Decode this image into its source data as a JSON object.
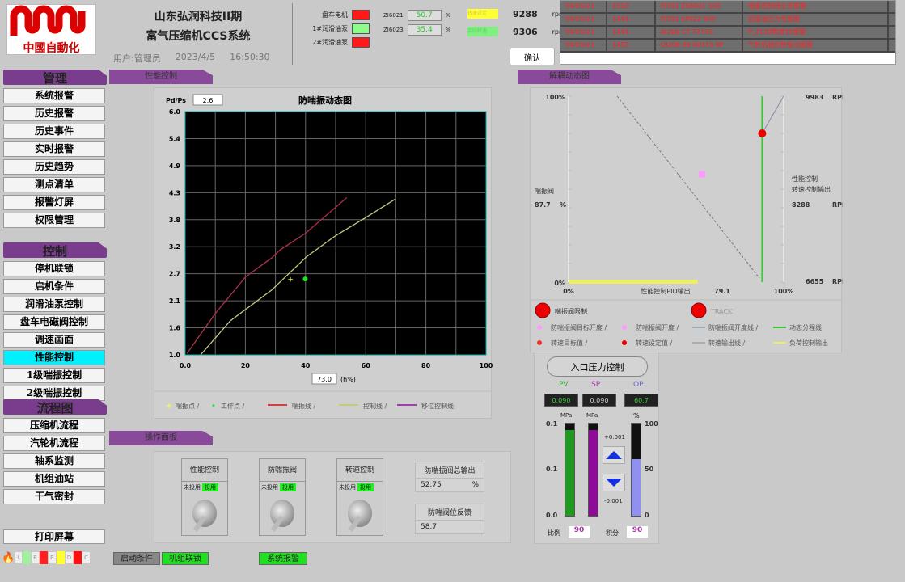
{
  "header": {
    "logo_text": "中國自動化",
    "title_line1": "山东弘润科技II期",
    "title_line2": "富气压缩机CCS系统",
    "user": "用户:管理员",
    "date": "2023/4/5",
    "time": "16:50:30"
  },
  "status_lamps": [
    {
      "label": "盘车电机",
      "color": "#ff1a1a"
    },
    {
      "label": "1#润滑油泵",
      "color": "#8dfc8d"
    },
    {
      "label": "2#润滑油泵",
      "color": "#ff1a1a"
    }
  ],
  "zi": [
    {
      "tag": "ZI6021",
      "value": "50.7",
      "unit": "%"
    },
    {
      "tag": "ZI6023",
      "value": "35.4",
      "unit": "%"
    }
  ],
  "speeds": [
    {
      "label": "转速设定",
      "color": "#ffff33",
      "value": "9288",
      "unit": "rpm"
    },
    {
      "label": "实际转速",
      "color": "#80f080",
      "value": "9306",
      "unit": "rpm"
    }
  ],
  "confirm_label": "确认",
  "alarms": [
    [
      "04/05/21",
      "1510",
      "PI201 ZS6001 100",
      "喘振控制阀全关报警"
    ],
    [
      "04/05/21",
      "1444",
      "PI201 SP022 500",
      "润滑油压力低报警"
    ],
    [
      "04/05/21",
      "1444",
      "AI206 CT 7213S",
      "P_2130转速10报警"
    ],
    [
      "04/05/21",
      "1452",
      "QI206 ZS 6021S 8P",
      "气轮机轴位移振动报警"
    ]
  ],
  "sidebar": {
    "groups": [
      {
        "title": "管理",
        "items": [
          "系统报警",
          "历史报警",
          "历史事件",
          "实时报警",
          "历史趋势",
          "测点清单",
          "报警灯屏",
          "权限管理"
        ]
      },
      {
        "title": "控制",
        "items": [
          "停机联锁",
          "启机条件",
          "润滑油泵控制",
          "盘车电磁阀控制",
          "调速画面",
          "性能控制",
          "1级喘振控制",
          "2级喘振控制"
        ],
        "active": "性能控制"
      },
      {
        "title": "流程图",
        "items": [
          "压缩机流程",
          "汽轮机流程",
          "轴系监测",
          "机组油站",
          "干气密封"
        ]
      }
    ],
    "print_label": "打印屏幕"
  },
  "tabs": {
    "performance": "性能控制",
    "decouple": "解耦动态图",
    "operation": "操作面板"
  },
  "chart_data": {
    "type": "line",
    "title": "防喘振动态图",
    "ylabel": "Pd/Ps",
    "ylabel_value": "2.6",
    "xlabel": "(h%)",
    "xlabel_value": "73.0",
    "xlim": [
      0,
      100
    ],
    "ylim": [
      1.0,
      6.0
    ],
    "grid": true,
    "x_ticks": [
      "0.0",
      "20",
      "40",
      "60",
      "80",
      "100"
    ],
    "y_ticks": [
      "1.0",
      "1.6",
      "2.1",
      "2.7",
      "3.2",
      "3.8",
      "4.3",
      "4.9",
      "5.4",
      "6.0"
    ],
    "series": [
      {
        "name": "喘振线",
        "color": "#b0304a",
        "points": [
          [
            0.6,
            1.03
          ],
          [
            10,
            1.85
          ],
          [
            20,
            2.6
          ],
          [
            28.7,
            2.99
          ],
          [
            31.4,
            3.15
          ],
          [
            40,
            3.5
          ],
          [
            53.7,
            4.23
          ]
        ]
      },
      {
        "name": "控制线",
        "color": "#c8c880",
        "points": [
          [
            5.1,
            1.0
          ],
          [
            15,
            1.7
          ],
          [
            28.7,
            2.33
          ],
          [
            40.4,
            3.02
          ],
          [
            50,
            3.45
          ],
          [
            60,
            3.82
          ],
          [
            69.8,
            4.2
          ]
        ]
      },
      {
        "name": "移位控制线",
        "color": "#a040b0",
        "points": []
      }
    ],
    "surge_point": {
      "name": "喘振点",
      "x": 35,
      "y": 2.57,
      "color": "#ffff40"
    },
    "work_point": {
      "name": "工作点",
      "x": 39.9,
      "y": 2.56,
      "color": "#20e020"
    },
    "legend": [
      "喘振点",
      "工作点",
      "喘振线",
      "控制线",
      "移位控制线"
    ],
    "legend_position": "bottom"
  },
  "decouple": {
    "left_top": "100%",
    "left_bottom": "0%",
    "valve_label": "喘振阀",
    "valve_value": "87.7",
    "valve_unit": "%",
    "right_top": "9983",
    "right_mid_label1": "性能控制",
    "right_mid_label2": "转速控制输出",
    "right_mid": "8288",
    "right_bottom": "6655",
    "rpm": "RPM",
    "x_left": "0%",
    "x_mid_label": "性能控制PID输出",
    "x_mid": "79.1",
    "x_right": "100%",
    "pink_point": {
      "x": 62,
      "y": 58
    },
    "red_point": {
      "x": 90,
      "y": 80
    },
    "green_line_x": 90,
    "yellow_bar_to": 60,
    "lamps": [
      "喘振阀限制",
      "TRACK"
    ],
    "legend": [
      "防喘振阀目标开度",
      "防喘振阀开度",
      "防喘振阀开度线",
      "动态分程线",
      "转速目标值",
      "转速设定值",
      "转速输出线",
      "负荷控制输出"
    ]
  },
  "pressure": {
    "button": "入口压力控制",
    "pv_label": "PV",
    "sp_label": "SP",
    "op_label": "OP",
    "pv": "0.090",
    "sp": "0.090",
    "op": "60.7",
    "pv_unit": "MPa",
    "sp_unit": "MPa",
    "op_unit": "%",
    "pv_fill": 93,
    "sp_fill": 93,
    "op_fill": 61,
    "left_scale": [
      "0.1",
      "0.1",
      "0.0"
    ],
    "right_scale": [
      "100",
      "50",
      "0"
    ],
    "inc": "+0.001",
    "dec": "-0.001",
    "p_label": "比例",
    "p_value": "90",
    "i_label": "积分",
    "i_value": "90"
  },
  "operation": {
    "knobs": [
      {
        "title": "性能控制",
        "off": "未投用",
        "on": "投用"
      },
      {
        "title": "防喘振阀",
        "off": "未投用",
        "on": "投用"
      },
      {
        "title": "转速控制",
        "off": "未投用",
        "on": "投用"
      }
    ],
    "readouts": [
      {
        "label": "防喘振阀总输出",
        "value": "52.75",
        "unit": "%"
      },
      {
        "label": "防喘阀位反馈",
        "value": "58.7",
        "unit": ""
      }
    ]
  },
  "footer": {
    "leds": [
      {
        "k": "L",
        "c": "#a0f0a0"
      },
      {
        "k": "R",
        "c": "#ff2020"
      },
      {
        "k": "B",
        "c": "#ffff30"
      },
      {
        "k": "D",
        "c": "#ff1010"
      },
      {
        "k": "C",
        "c": "#eee"
      }
    ],
    "start_cond": "启动条件",
    "interlock": "机组联锁",
    "sys_alarm": "系统报警"
  }
}
